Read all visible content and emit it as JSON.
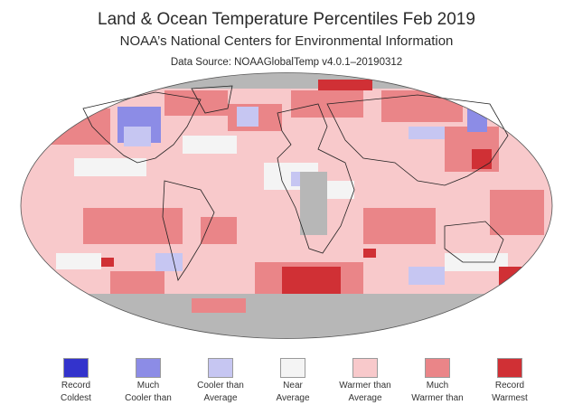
{
  "header": {
    "title": "Land & Ocean Temperature Percentiles Feb 2019",
    "subtitle": "NOAA’s National Centers for Environmental Information",
    "source": "Data Source: NOAAGlobalTemp v4.0.1–20190312"
  },
  "map": {
    "projection": "Robinson (approx.)",
    "categories": {
      "record_coldest": "#3333cc",
      "much_cooler": "#8c8ce6",
      "cooler": "#c6c6f2",
      "near": "#f4f4f4",
      "warmer": "#f8c9cb",
      "much_warmer": "#ea8588",
      "record_warmest": "#d03035",
      "no_data": "#b7b7b7"
    }
  },
  "legend": [
    {
      "line1": "Record",
      "line2": "Coldest",
      "color": "#3333cc"
    },
    {
      "line1": "Much",
      "line2": "Cooler than",
      "color": "#8c8ce6"
    },
    {
      "line1": "Cooler than",
      "line2": "Average",
      "color": "#c6c6f2"
    },
    {
      "line1": "Near",
      "line2": "Average",
      "color": "#f4f4f4"
    },
    {
      "line1": "Warmer than",
      "line2": "Average",
      "color": "#f8c9cb"
    },
    {
      "line1": "Much",
      "line2": "Warmer than",
      "color": "#ea8588"
    },
    {
      "line1": "Record",
      "line2": "Warmest",
      "color": "#d03035"
    }
  ]
}
